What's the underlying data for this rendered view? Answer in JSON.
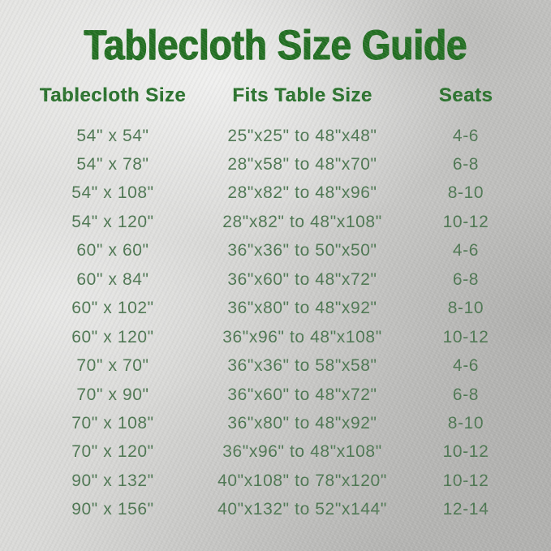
{
  "title": "Tablecloth Size Guide",
  "table": {
    "headers": [
      "Tablecloth Size",
      "Fits Table Size",
      "Seats"
    ],
    "rows": [
      [
        "54\" x 54\"",
        "25\"x25\" to 48\"x48\"",
        "4-6"
      ],
      [
        "54\" x 78\"",
        "28\"x58\" to 48\"x70\"",
        "6-8"
      ],
      [
        "54\" x 108\"",
        "28\"x82\" to 48\"x96\"",
        "8-10"
      ],
      [
        "54\" x 120\"",
        "28\"x82\" to 48\"x108\"",
        "10-12"
      ],
      [
        "60\" x 60\"",
        "36\"x36\" to 50\"x50\"",
        "4-6"
      ],
      [
        "60\" x 84\"",
        "36\"x60\" to 48\"x72\"",
        "6-8"
      ],
      [
        "60\" x 102\"",
        "36\"x80\" to 48\"x92\"",
        "8-10"
      ],
      [
        "60\" x 120\"",
        "36\"x96\" to 48\"x108\"",
        "10-12"
      ],
      [
        "70\" x 70\"",
        "36\"x36\" to 58\"x58\"",
        "4-6"
      ],
      [
        "70\" x 90\"",
        "36\"x60\" to 48\"x72\"",
        "6-8"
      ],
      [
        "70\" x 108\"",
        "36\"x80\" to 48\"x92\"",
        "8-10"
      ],
      [
        "70\" x 120\"",
        "36\"x96\" to 48\"x108\"",
        "10-12"
      ],
      [
        "90\" x 132\"",
        "40\"x108\" to 78\"x120\"",
        "10-12"
      ],
      [
        "90\" x 156\"",
        "40\"x132\" to 52\"x144\"",
        "12-14"
      ]
    ]
  },
  "colors": {
    "title_green": "#1f6d1f",
    "header_green": "#27702a",
    "data_green": "#4a744f",
    "background_silver": "#cfcfcd"
  }
}
